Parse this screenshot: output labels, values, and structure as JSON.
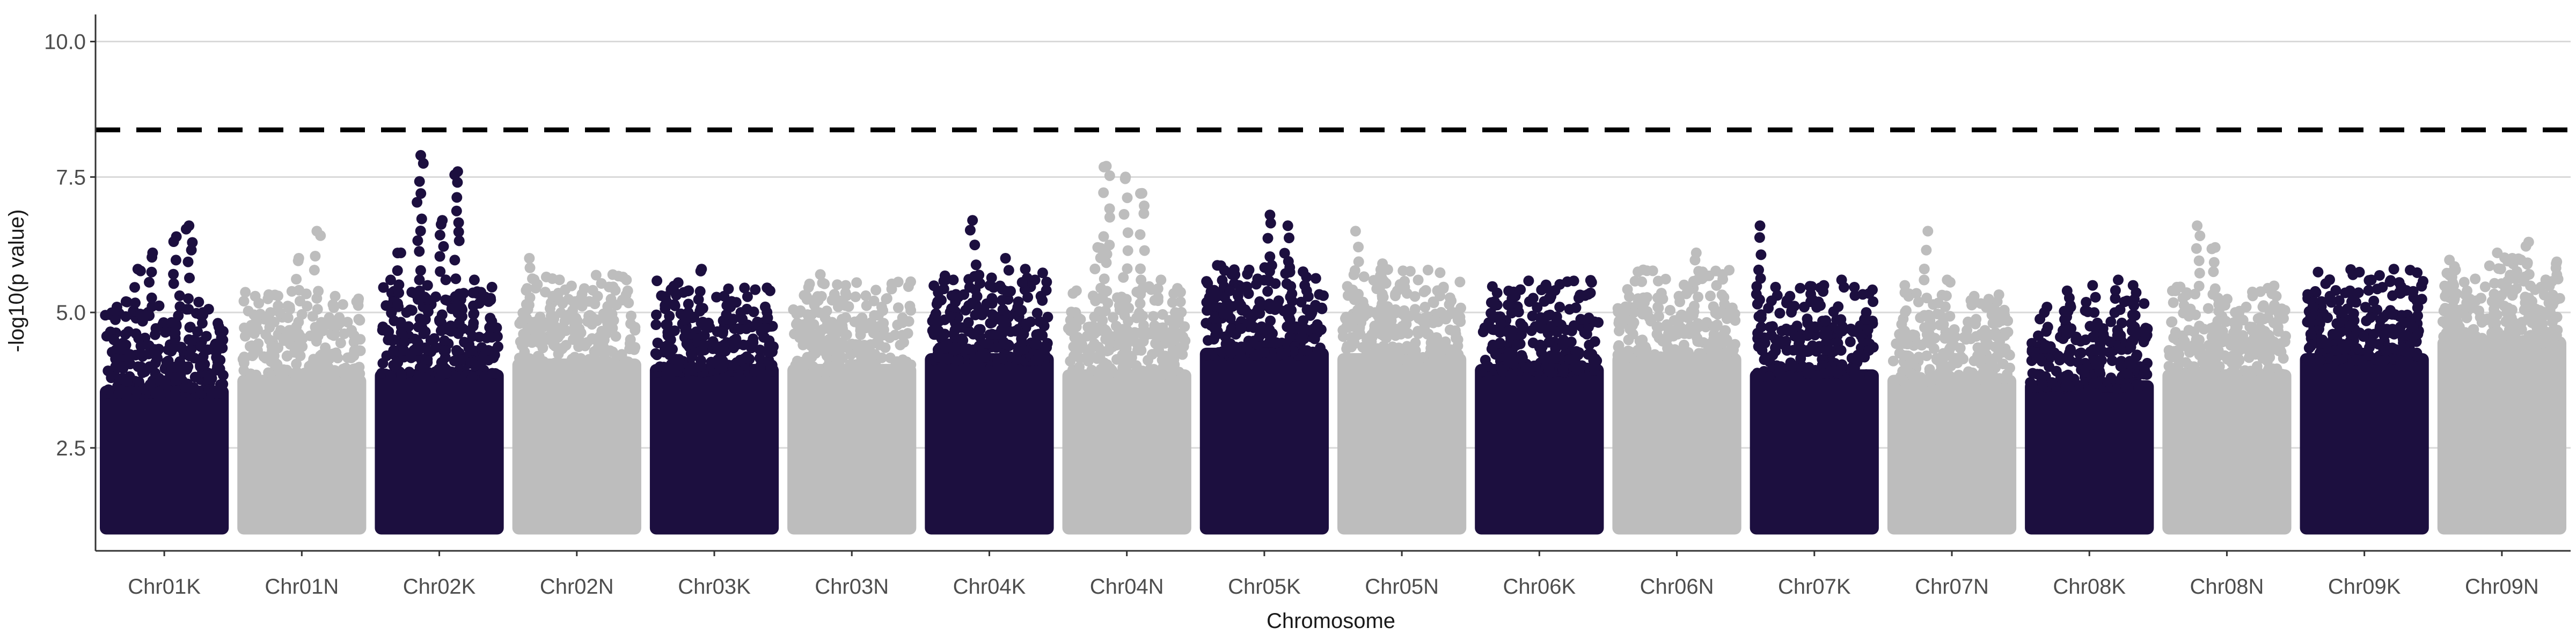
{
  "chart_data": {
    "type": "scatter",
    "subtype": "manhattan",
    "title": "",
    "xlabel": "Chromosome",
    "ylabel": "-log10(p value)",
    "ylim": [
      0.6,
      10.5
    ],
    "yticks": [
      2.5,
      5.0,
      7.5,
      10.0
    ],
    "ytick_labels": [
      "2.5",
      "5.0",
      "7.5",
      "10.0"
    ],
    "grid": "horizontal major lines at y ticks",
    "threshold": {
      "value": 8.37,
      "style": "dashed",
      "color": "#000000"
    },
    "colors": {
      "dark": "#1c0f3f",
      "light": "#bdbdbd"
    },
    "chromosomes": [
      {
        "name": "Chr01K",
        "color": "dark",
        "body_top": 4.0,
        "peaks": [
          5.1,
          5.2,
          5.8,
          6.1,
          6.4,
          6.6,
          5.0,
          4.8
        ]
      },
      {
        "name": "Chr01N",
        "color": "light",
        "body_top": 4.2,
        "peaks": [
          5.3,
          5.0,
          5.1,
          6.0,
          6.5,
          5.3,
          5.2
        ]
      },
      {
        "name": "Chr02K",
        "color": "dark",
        "body_top": 4.3,
        "peaks": [
          5.6,
          6.1,
          7.9,
          5.5,
          6.7,
          7.6,
          5.6,
          5.2
        ]
      },
      {
        "name": "Chr02N",
        "color": "light",
        "body_top": 4.5,
        "peaks": [
          6.0,
          5.3,
          5.2,
          5.3,
          5.4
        ]
      },
      {
        "name": "Chr03K",
        "color": "dark",
        "body_top": 4.4,
        "peaks": [
          5.2,
          5.0,
          5.8,
          5.3,
          5.0,
          4.9
        ]
      },
      {
        "name": "Chr03N",
        "color": "light",
        "body_top": 4.4,
        "peaks": [
          5.0,
          5.7,
          5.5,
          4.9,
          5.1,
          4.9
        ]
      },
      {
        "name": "Chr04K",
        "color": "dark",
        "body_top": 4.6,
        "peaks": [
          5.2,
          5.6,
          6.7,
          5.5,
          6.0,
          5.8,
          5.3
        ]
      },
      {
        "name": "Chr04N",
        "color": "light",
        "body_top": 4.3,
        "peaks": [
          5.0,
          6.2,
          7.7,
          7.5,
          7.2,
          5.6,
          5.0
        ]
      },
      {
        "name": "Chr05K",
        "color": "dark",
        "body_top": 4.7,
        "peaks": [
          5.3,
          5.4,
          5.5,
          5.2,
          6.8,
          6.6,
          5.5,
          5.0
        ]
      },
      {
        "name": "Chr05N",
        "color": "light",
        "body_top": 4.6,
        "peaks": [
          6.5,
          5.9,
          5.4,
          5.1,
          5.0
        ]
      },
      {
        "name": "Chr06K",
        "color": "dark",
        "body_top": 4.4,
        "peaks": [
          5.2,
          5.3,
          4.8,
          5.1,
          4.6
        ]
      },
      {
        "name": "Chr06N",
        "color": "light",
        "body_top": 4.6,
        "peaks": [
          5.0,
          5.1,
          5.3,
          6.1,
          5.7
        ]
      },
      {
        "name": "Chr07K",
        "color": "dark",
        "body_top": 4.3,
        "peaks": [
          6.6,
          5.3,
          5.1,
          5.5,
          5.6,
          5.0
        ]
      },
      {
        "name": "Chr07N",
        "color": "light",
        "body_top": 4.2,
        "peaks": [
          5.5,
          6.5,
          5.6,
          5.3,
          5.2
        ]
      },
      {
        "name": "Chr08K",
        "color": "dark",
        "body_top": 4.1,
        "peaks": [
          5.0,
          5.4,
          5.5,
          5.6,
          5.5
        ]
      },
      {
        "name": "Chr08N",
        "color": "light",
        "body_top": 4.3,
        "peaks": [
          5.4,
          6.6,
          6.2,
          5.0,
          4.9,
          5.3
        ]
      },
      {
        "name": "Chr09K",
        "color": "dark",
        "body_top": 4.6,
        "peaks": [
          5.1,
          5.3,
          5.4,
          5.6,
          5.8,
          5.1
        ]
      },
      {
        "name": "Chr09N",
        "color": "light",
        "body_top": 4.9,
        "peaks": [
          5.8,
          5.4,
          6.1,
          6.0,
          6.3,
          5.9
        ]
      }
    ]
  }
}
